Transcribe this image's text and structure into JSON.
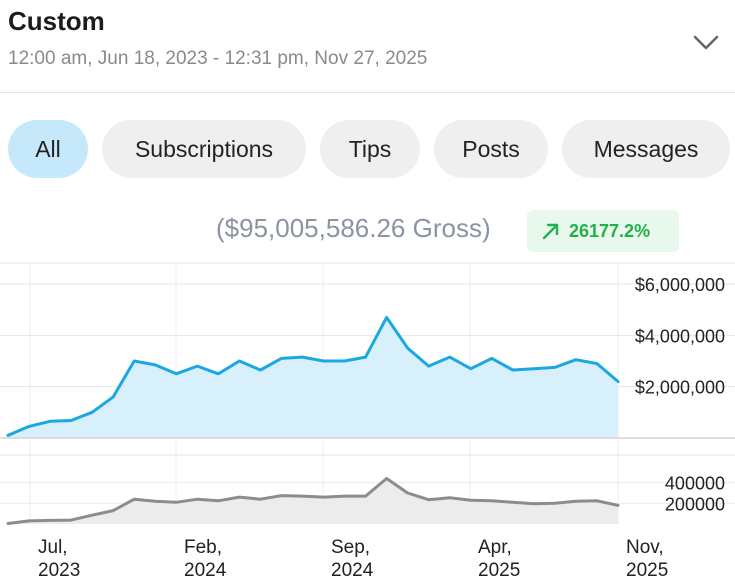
{
  "header": {
    "title": "Custom",
    "date_range": "12:00 am, Jun 18, 2023 - 12:31 pm, Nov 27, 2025",
    "expand_icon": "chevron-down-icon"
  },
  "tabs": [
    {
      "label": "All",
      "active": true
    },
    {
      "label": "Subscriptions",
      "active": false
    },
    {
      "label": "Tips",
      "active": false
    },
    {
      "label": "Posts",
      "active": false
    },
    {
      "label": "Messages",
      "active": false
    }
  ],
  "summary": {
    "gross": "($95,005,586.26 Gross)",
    "change": "26177.2%",
    "change_icon": "arrow-up-right-icon",
    "change_color": "#21b14a"
  },
  "colors": {
    "accent_line": "#1ba8e2",
    "accent_fill": "#d8f0fb",
    "secondary_line": "#8c8c8c",
    "secondary_fill": "#ececec",
    "active_tab": "#c5e9fb"
  },
  "chart_data": [
    {
      "type": "area",
      "x_ticks": [
        "Jul,\n2023",
        "Feb,\n2024",
        "Sep,\n2024",
        "Apr,\n2025",
        "Nov,\n2025"
      ],
      "y_ticks": [
        "$6,000,000",
        "$4,000,000",
        "$2,000,000"
      ],
      "ylim": [
        0,
        6000000
      ],
      "values": [
        100000,
        450000,
        650000,
        680000,
        1000000,
        1600000,
        3000000,
        2850000,
        2500000,
        2800000,
        2500000,
        3000000,
        2650000,
        3100000,
        3150000,
        3000000,
        3000000,
        3150000,
        4700000,
        3500000,
        2800000,
        3150000,
        2700000,
        3100000,
        2650000,
        2700000,
        2750000,
        3050000,
        2900000,
        2200000
      ]
    },
    {
      "type": "area",
      "y_ticks": [
        "400000",
        "200000"
      ],
      "ylim": [
        0,
        600000
      ],
      "values": [
        5000,
        30000,
        35000,
        38000,
        85000,
        130000,
        240000,
        220000,
        210000,
        240000,
        225000,
        260000,
        240000,
        275000,
        270000,
        260000,
        270000,
        270000,
        440000,
        300000,
        235000,
        255000,
        230000,
        225000,
        210000,
        195000,
        200000,
        220000,
        225000,
        180000
      ]
    }
  ]
}
